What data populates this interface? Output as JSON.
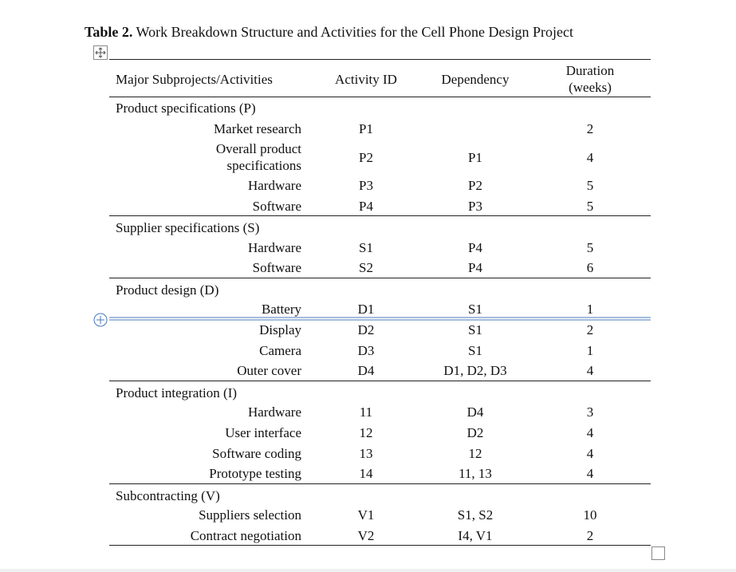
{
  "caption": {
    "label": "Table 2.",
    "text": "Work Breakdown Structure and Activities for the Cell Phone Design Project"
  },
  "table": {
    "headers": [
      "Major Subprojects/Activities",
      "Activity ID",
      "Dependency",
      "Duration (weeks)"
    ],
    "groups": [
      {
        "title": "Product specifications (P)",
        "rows": [
          [
            "Market research",
            "P1",
            null,
            2
          ],
          [
            "Overall product specifications",
            "P2",
            "P1",
            4
          ],
          [
            "Hardware",
            "P3",
            "P2",
            5
          ],
          [
            "Software",
            "P4",
            "P3",
            5
          ]
        ]
      },
      {
        "title": "Supplier specifications (S)",
        "rows": [
          [
            "Hardware",
            "S1",
            "P4",
            5
          ],
          [
            "Software",
            "S2",
            "P4",
            6
          ]
        ]
      },
      {
        "title": "Product design (D)",
        "rows": [
          [
            "Battery",
            "D1",
            "S1",
            1
          ],
          [
            "Display",
            "D2",
            "S1",
            2
          ],
          [
            "Camera",
            "D3",
            "S1",
            1
          ],
          [
            "Outer cover",
            "D4",
            "D1, D2, D3",
            4
          ]
        ]
      },
      {
        "title": "Product integration (I)",
        "rows": [
          [
            "Hardware",
            "11",
            "D4",
            3
          ],
          [
            "User interface",
            "12",
            "D2",
            4
          ],
          [
            "Software coding",
            "13",
            "12",
            4
          ],
          [
            "Prototype testing",
            "14",
            "11, 13",
            4
          ]
        ]
      },
      {
        "title": "Subcontracting (V)",
        "rows": [
          [
            "Suppliers selection",
            "V1",
            "S1, S2",
            10
          ],
          [
            "Contract negotiation",
            "V2",
            "I4, V1",
            2
          ]
        ]
      }
    ]
  }
}
